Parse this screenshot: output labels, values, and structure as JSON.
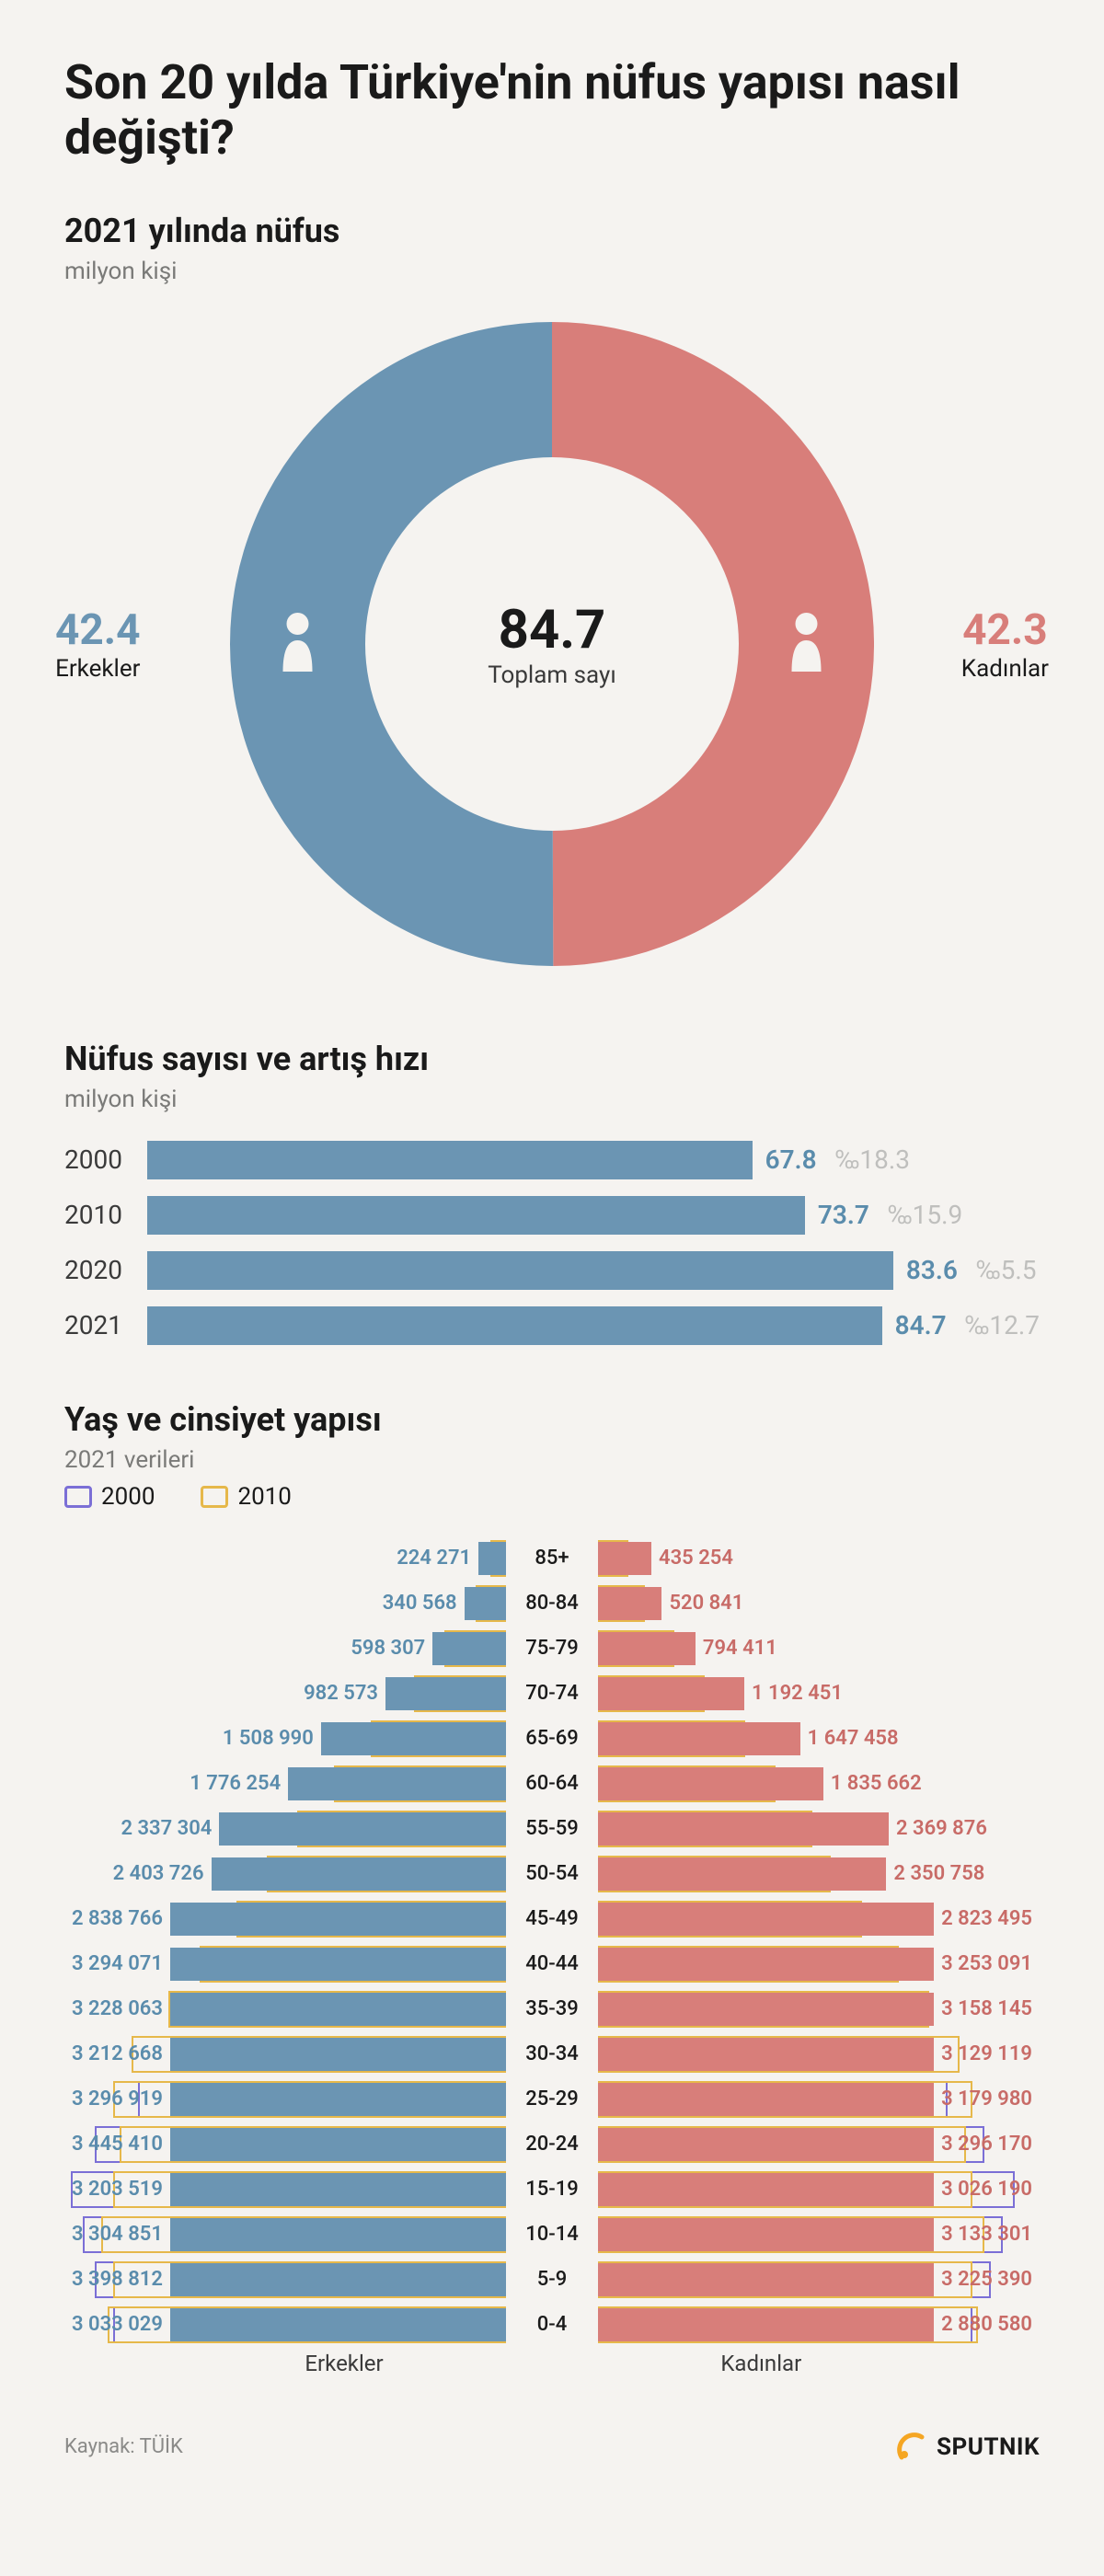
{
  "title": "Son 20 yılda Türkiye'nin nüfus yapısı nasıl değişti?",
  "donut": {
    "title": "2021 yılında nüfus",
    "subtitle": "milyon kişi",
    "total_value": "84.7",
    "total_label": "Toplam sayı",
    "left_value": "42.4",
    "left_label": "Erkekler",
    "left_color": "#6b95b3",
    "right_value": "42.3",
    "right_label": "Kadınlar",
    "right_color": "#d87e7a",
    "inner_radius_ratio": 0.58,
    "outer_radius": 350
  },
  "pop_chart": {
    "title": "Nüfus sayısı ve artış hızı",
    "subtitle": "milyon kişi",
    "bar_color": "#6b95b3",
    "value_color": "#5a8cac",
    "rate_color": "#bfbfbd",
    "max_value": 100,
    "rows": [
      {
        "year": "2000",
        "value": 67.8,
        "rate": "‰18.3"
      },
      {
        "year": "2010",
        "value": 73.7,
        "rate": "‰15.9"
      },
      {
        "year": "2020",
        "value": 83.6,
        "rate": "‰5.5"
      },
      {
        "year": "2021",
        "value": 84.7,
        "rate": "‰12.7"
      }
    ]
  },
  "pyramid": {
    "title": "Yaş ve cinsiyet yapısı",
    "subtitle": "2021 verileri",
    "male_color": "#6b95b3",
    "female_color": "#d87e7a",
    "male_text_color": "#5a8cac",
    "female_text_color": "#c86b67",
    "outline2000_color": "#7b6fd6",
    "outline2010_color": "#e6b84a",
    "legend": [
      {
        "label": "2000",
        "color": "#7b6fd6"
      },
      {
        "label": "2010",
        "color": "#e6b84a"
      }
    ],
    "male_label": "Erkekler",
    "female_label": "Kadınlar",
    "max_scale": 3600000,
    "rows": [
      {
        "age": "85+",
        "m": 224271,
        "m_txt": "224 271",
        "f": 435254,
        "f_txt": "435 254",
        "m2000": 90000,
        "f2000": 150000,
        "m2010": 130000,
        "f2010": 250000
      },
      {
        "age": "80-84",
        "m": 340568,
        "m_txt": "340 568",
        "f": 520841,
        "f_txt": "520 841",
        "m2000": 180000,
        "f2000": 260000,
        "m2010": 250000,
        "f2010": 380000
      },
      {
        "age": "75-79",
        "m": 598307,
        "m_txt": "598 307",
        "f": 794411,
        "f_txt": "794 411",
        "m2000": 400000,
        "f2000": 480000,
        "m2010": 500000,
        "f2010": 620000
      },
      {
        "age": "70-74",
        "m": 982573,
        "m_txt": "982 573",
        "f": 1192451,
        "f_txt": "1 192 451",
        "m2000": 650000,
        "f2000": 720000,
        "m2010": 750000,
        "f2010": 870000
      },
      {
        "age": "65-69",
        "m": 1508990,
        "m_txt": "1 508 990",
        "f": 1647458,
        "f_txt": "1 647 458",
        "m2000": 950000,
        "f2000": 1020000,
        "m2010": 1100000,
        "f2010": 1200000
      },
      {
        "age": "60-64",
        "m": 1776254,
        "m_txt": "1 776 254",
        "f": 1835662,
        "f_txt": "1 835 662",
        "m2000": 1100000,
        "f2000": 1150000,
        "m2010": 1400000,
        "f2010": 1450000
      },
      {
        "age": "55-59",
        "m": 2337304,
        "m_txt": "2 337 304",
        "f": 2369876,
        "f_txt": "2 369 876",
        "m2000": 1300000,
        "f2000": 1350000,
        "m2010": 1700000,
        "f2010": 1750000
      },
      {
        "age": "50-54",
        "m": 2403726,
        "m_txt": "2 403 726",
        "f": 2350758,
        "f_txt": "2 350 758",
        "m2000": 1550000,
        "f2000": 1500000,
        "m2010": 1950000,
        "f2010": 1900000
      },
      {
        "age": "45-49",
        "m": 2838766,
        "m_txt": "2 838 766",
        "f": 2823495,
        "f_txt": "2 823 495",
        "m2000": 1850000,
        "f2000": 1800000,
        "m2010": 2200000,
        "f2010": 2150000
      },
      {
        "age": "40-44",
        "m": 3294071,
        "m_txt": "3 294 071",
        "f": 3253091,
        "f_txt": "3 253 091",
        "m2000": 2100000,
        "f2000": 2050000,
        "m2010": 2500000,
        "f2010": 2450000
      },
      {
        "age": "35-39",
        "m": 3228063,
        "m_txt": "3 228 063",
        "f": 3158145,
        "f_txt": "3 158 145",
        "m2000": 2450000,
        "f2000": 2400000,
        "m2010": 2750000,
        "f2010": 2700000
      },
      {
        "age": "30-34",
        "m": 3212668,
        "m_txt": "3 212 668",
        "f": 3129119,
        "f_txt": "3 129 119",
        "m2000": 2700000,
        "f2000": 2600000,
        "m2010": 3050000,
        "f2010": 2950000
      },
      {
        "age": "25-29",
        "m": 3296919,
        "m_txt": "3 296 919",
        "f": 3179980,
        "f_txt": "3 179 980",
        "m2000": 3000000,
        "f2000": 2850000,
        "m2010": 3200000,
        "f2010": 3050000
      },
      {
        "age": "20-24",
        "m": 3445410,
        "m_txt": "3 445 410",
        "f": 3296170,
        "f_txt": "3 296 170",
        "m2000": 3350000,
        "f2000": 3150000,
        "m2010": 3150000,
        "f2010": 3000000
      },
      {
        "age": "15-19",
        "m": 3203519,
        "m_txt": "3 203 519",
        "f": 3026190,
        "f_txt": "3 026 190",
        "m2000": 3550000,
        "f2000": 3400000,
        "m2010": 3200000,
        "f2010": 3050000
      },
      {
        "age": "10-14",
        "m": 3304851,
        "m_txt": "3 304 851",
        "f": 3133301,
        "f_txt": "3 133 301",
        "m2000": 3450000,
        "f2000": 3300000,
        "m2010": 3300000,
        "f2010": 3150000
      },
      {
        "age": "5-9",
        "m": 3398812,
        "m_txt": "3 398 812",
        "f": 3225390,
        "f_txt": "3 225 390",
        "m2000": 3350000,
        "f2000": 3200000,
        "m2010": 3200000,
        "f2010": 3050000
      },
      {
        "age": "0-4",
        "m": 3033029,
        "m_txt": "3 033 029",
        "f": 2880580,
        "f_txt": "2 880 580",
        "m2000": 3200000,
        "f2000": 3050000,
        "m2010": 3250000,
        "f2010": 3100000
      }
    ]
  },
  "source": "Kaynak: TÜİK",
  "brand": "SPUTNIK"
}
